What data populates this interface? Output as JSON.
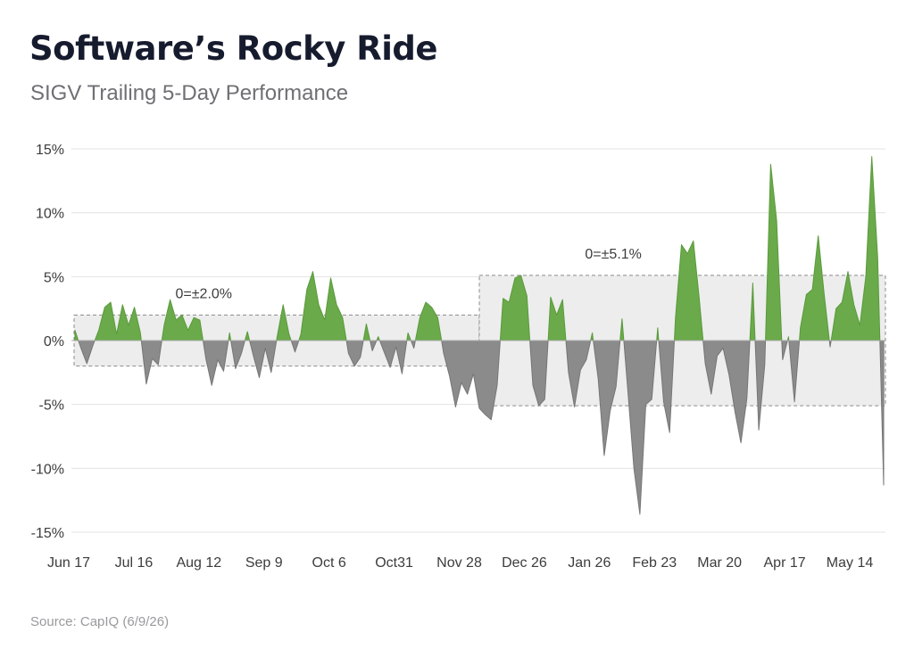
{
  "title": "Software’s Rocky Ride",
  "subtitle": "SIGV Trailing 5-Day Performance",
  "source": "Source: CapIQ (6/9/26)",
  "colors": {
    "positive": "#6aaa4a",
    "negative": "#8b8b8b",
    "band": "#ededed",
    "grid": "#e3e3e3",
    "text": "#3c3c3c"
  },
  "chart_data": {
    "type": "area",
    "title": "Software’s Rocky Ride",
    "subtitle": "SIGV Trailing 5-Day Performance",
    "ylabel": "",
    "xlabel": "",
    "ylim": [
      -15,
      15
    ],
    "y_ticks": [
      15,
      10,
      5,
      0,
      -5,
      -10,
      -15
    ],
    "y_tick_labels": [
      "15%",
      "10%",
      "5%",
      "0%",
      "-5%",
      "-10%",
      "-15%"
    ],
    "x_tick_labels": [
      "Jun 17",
      "Jul 16",
      "Aug 12",
      "Sep 9",
      "Oct 6",
      "Oct31",
      "Nov 28",
      "Dec 26",
      "Jan 26",
      "Feb 23",
      "Mar 20",
      "Apr 17",
      "May 14"
    ],
    "grid": "horizontal",
    "bands": [
      {
        "label": "0=±2.0%",
        "from": "Jun 17",
        "to": "Oct31",
        "low": -2.0,
        "high": 2.0
      },
      {
        "label": "0=±5.1%",
        "from": "Oct31",
        "to": "end",
        "low": -5.1,
        "high": 5.1
      }
    ],
    "series": [
      {
        "points": [
          [
            "Jun 17",
            0.8
          ],
          [
            "Jun 19",
            -0.6
          ],
          [
            "Jun 21",
            -1.8
          ],
          [
            "Jun 23",
            -0.4
          ],
          [
            "Jun 25",
            0.8
          ],
          [
            "Jun 27",
            2.6
          ],
          [
            "Jun 29",
            3.0
          ],
          [
            "Jul 1",
            0.5
          ],
          [
            "Jul 3",
            2.8
          ],
          [
            "Jul 5",
            1.2
          ],
          [
            "Jul 7",
            2.6
          ],
          [
            "Jul 9",
            0.6
          ],
          [
            "Jul 11",
            -3.4
          ],
          [
            "Jul 13",
            -1.4
          ],
          [
            "Jul 15",
            -1.9
          ],
          [
            "Jul 17",
            1.2
          ],
          [
            "Jul 19",
            3.2
          ],
          [
            "Jul 21",
            1.6
          ],
          [
            "Jul 23",
            2.0
          ],
          [
            "Jul 25",
            0.8
          ],
          [
            "Jul 27",
            1.8
          ],
          [
            "Jul 29",
            1.6
          ],
          [
            "Jul 31",
            -1.4
          ],
          [
            "Aug 2",
            -3.5
          ],
          [
            "Aug 4",
            -1.5
          ],
          [
            "Aug 6",
            -2.4
          ],
          [
            "Aug 8",
            0.6
          ],
          [
            "Aug 10",
            -2.2
          ],
          [
            "Aug 12",
            -1.0
          ],
          [
            "Aug 14",
            0.7
          ],
          [
            "Aug 16",
            -1.2
          ],
          [
            "Aug 18",
            -2.9
          ],
          [
            "Aug 20",
            -0.6
          ],
          [
            "Aug 22",
            -2.5
          ],
          [
            "Aug 24",
            0.3
          ],
          [
            "Aug 26",
            2.8
          ],
          [
            "Aug 28",
            0.5
          ],
          [
            "Aug 30",
            -0.9
          ],
          [
            "Sep 1",
            0.5
          ],
          [
            "Sep 3",
            4.0
          ],
          [
            "Sep 5",
            5.4
          ],
          [
            "Sep 7",
            2.8
          ],
          [
            "Sep 9",
            1.6
          ],
          [
            "Sep 11",
            4.9
          ],
          [
            "Sep 13",
            2.8
          ],
          [
            "Sep 15",
            1.8
          ],
          [
            "Sep 17",
            -1.0
          ],
          [
            "Sep 19",
            -2.0
          ],
          [
            "Sep 21",
            -1.3
          ],
          [
            "Sep 23",
            1.3
          ],
          [
            "Sep 25",
            -0.8
          ],
          [
            "Sep 27",
            0.3
          ],
          [
            "Sep 29",
            -0.9
          ],
          [
            "Oct 1",
            -2.1
          ],
          [
            "Oct 3",
            -0.5
          ],
          [
            "Oct 5",
            -2.6
          ],
          [
            "Oct 7",
            0.6
          ],
          [
            "Oct 9",
            -0.6
          ],
          [
            "Oct 11",
            1.8
          ],
          [
            "Oct 13",
            3.0
          ],
          [
            "Oct 15",
            2.6
          ],
          [
            "Oct 17",
            1.8
          ],
          [
            "Oct 19",
            -1.0
          ],
          [
            "Oct 21",
            -2.8
          ],
          [
            "Oct 23",
            -5.2
          ],
          [
            "Oct 25",
            -3.3
          ],
          [
            "Oct 27",
            -4.2
          ],
          [
            "Oct 29",
            -2.6
          ],
          [
            "Oct 31",
            -5.3
          ],
          [
            "Nov 2",
            -5.8
          ],
          [
            "Nov 4",
            -6.2
          ],
          [
            "Nov 6",
            -3.5
          ],
          [
            "Nov 8",
            3.3
          ],
          [
            "Nov 10",
            3.0
          ],
          [
            "Nov 12",
            4.9
          ],
          [
            "Nov 14",
            5.1
          ],
          [
            "Nov 16",
            3.5
          ],
          [
            "Nov 18",
            -3.5
          ],
          [
            "Nov 20",
            -5.1
          ],
          [
            "Nov 22",
            -4.6
          ],
          [
            "Nov 24",
            3.4
          ],
          [
            "Nov 26",
            2.0
          ],
          [
            "Nov 28",
            3.2
          ],
          [
            "Nov 30",
            -2.5
          ],
          [
            "Dec 2",
            -5.2
          ],
          [
            "Dec 4",
            -2.3
          ],
          [
            "Dec 6",
            -1.5
          ],
          [
            "Dec 8",
            0.6
          ],
          [
            "Dec 10",
            -3.0
          ],
          [
            "Dec 12",
            -9.0
          ],
          [
            "Dec 14",
            -5.5
          ],
          [
            "Dec 16",
            -3.6
          ],
          [
            "Dec 18",
            1.7
          ],
          [
            "Dec 20",
            -4.0
          ],
          [
            "Dec 22",
            -10.0
          ],
          [
            "Dec 24",
            -13.6
          ],
          [
            "Dec 26",
            -5.0
          ],
          [
            "Dec 28",
            -4.6
          ],
          [
            "Dec 30",
            1.0
          ],
          [
            "Jan 1",
            -4.8
          ],
          [
            "Jan 3",
            -7.2
          ],
          [
            "Jan 5",
            1.8
          ],
          [
            "Jan 7",
            7.5
          ],
          [
            "Jan 9",
            6.8
          ],
          [
            "Jan 11",
            7.8
          ],
          [
            "Jan 13",
            3.2
          ],
          [
            "Jan 15",
            -1.8
          ],
          [
            "Jan 17",
            -4.2
          ],
          [
            "Jan 19",
            -1.2
          ],
          [
            "Jan 21",
            -0.6
          ],
          [
            "Jan 23",
            -2.7
          ],
          [
            "Jan 25",
            -5.6
          ],
          [
            "Jan 27",
            -8.0
          ],
          [
            "Jan 29",
            -4.5
          ],
          [
            "Jan 31",
            4.5
          ],
          [
            "Feb 2",
            -7.0
          ],
          [
            "Feb 4",
            -1.9
          ],
          [
            "Feb 6",
            13.8
          ],
          [
            "Feb 8",
            9.4
          ],
          [
            "Feb 10",
            -1.5
          ],
          [
            "Feb 12",
            0.3
          ],
          [
            "Feb 14",
            -4.8
          ],
          [
            "Feb 16",
            1.0
          ],
          [
            "Feb 18",
            3.6
          ],
          [
            "Feb 20",
            4.0
          ],
          [
            "Feb 22",
            8.2
          ],
          [
            "Feb 24",
            3.6
          ],
          [
            "Feb 26",
            -0.5
          ],
          [
            "Feb 28",
            2.5
          ],
          [
            "Mar 2",
            3.0
          ],
          [
            "Mar 4",
            5.4
          ],
          [
            "Mar 6",
            2.8
          ],
          [
            "Mar 8",
            1.2
          ],
          [
            "Mar 10",
            5.0
          ],
          [
            "Mar 12",
            14.4
          ],
          [
            "Mar 14",
            6.5
          ],
          [
            "Mar 16",
            -11.3
          ]
        ]
      }
    ]
  }
}
